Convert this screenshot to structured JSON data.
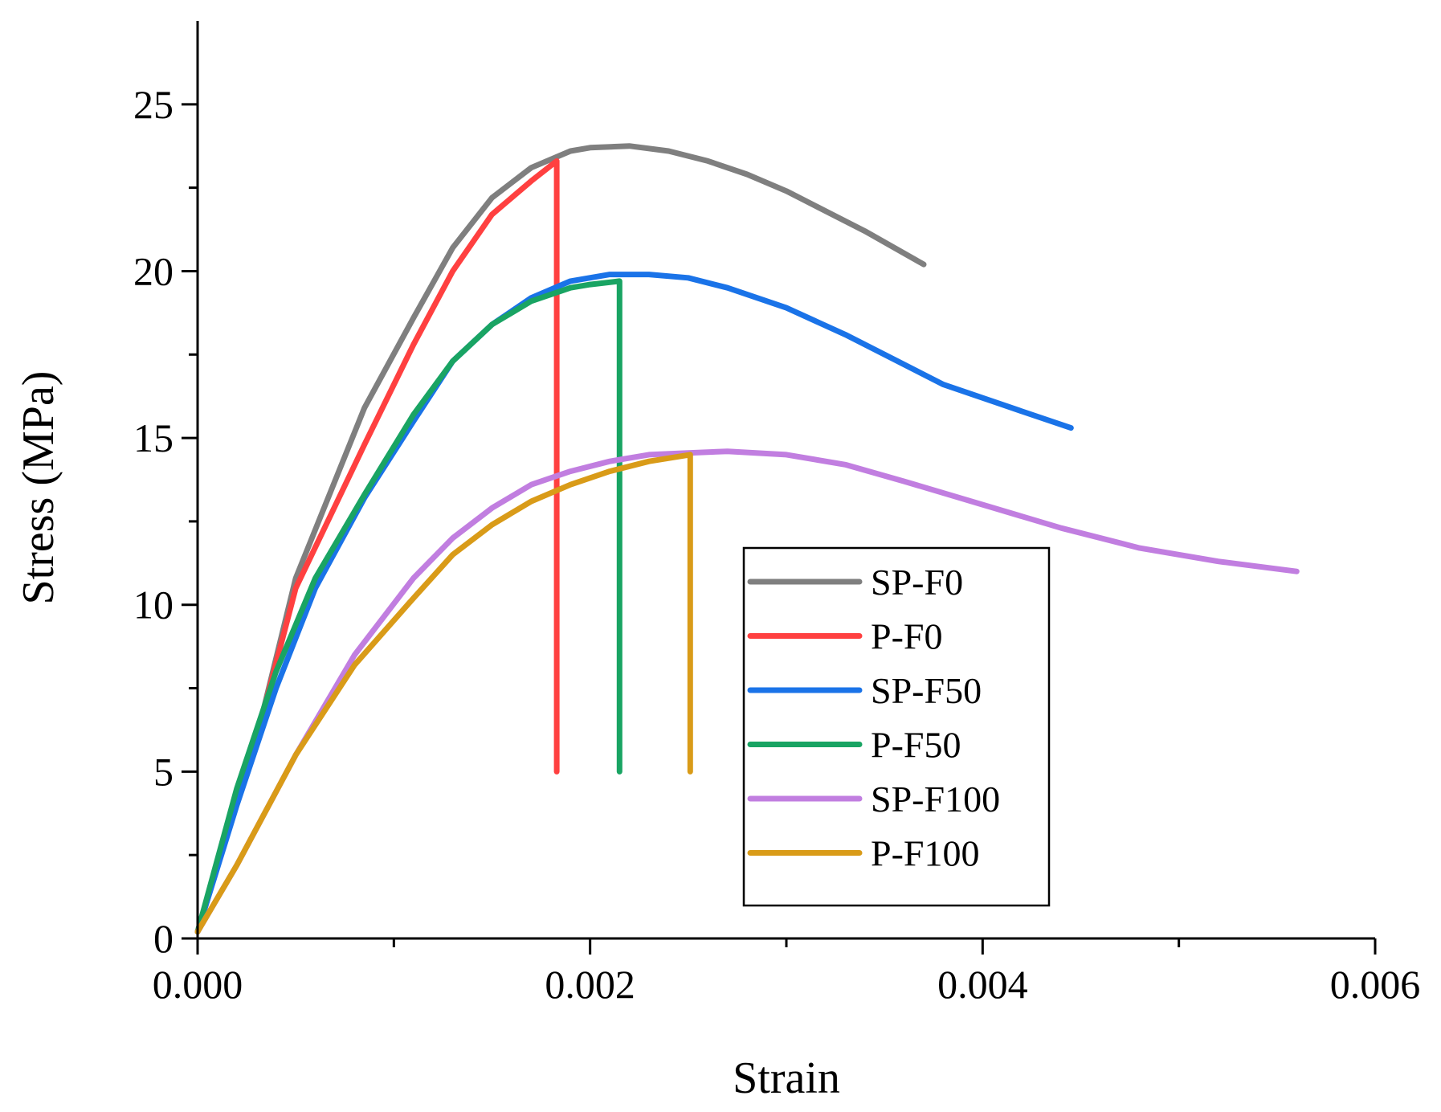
{
  "chart_data": {
    "type": "line",
    "xlabel": "Strain",
    "ylabel": "Stress (MPa)",
    "xlim": [
      0,
      0.006
    ],
    "ylim": [
      0,
      27.5
    ],
    "x_ticks": [
      {
        "value": 0,
        "label": "0.000"
      },
      {
        "value": 0.002,
        "label": "0.002"
      },
      {
        "value": 0.004,
        "label": "0.004"
      },
      {
        "value": 0.006,
        "label": "0.006"
      }
    ],
    "x_minor_ticks": [
      0.001,
      0.003,
      0.005
    ],
    "y_ticks": [
      {
        "value": 0,
        "label": "0"
      },
      {
        "value": 5,
        "label": "5"
      },
      {
        "value": 10,
        "label": "10"
      },
      {
        "value": 15,
        "label": "15"
      },
      {
        "value": 20,
        "label": "20"
      },
      {
        "value": 25,
        "label": "25"
      }
    ],
    "y_minor_ticks": [
      2.5,
      7.5,
      12.5,
      17.5,
      22.5
    ],
    "grid": false,
    "legend_position": "bottom-right",
    "series": [
      {
        "name": "SP-F0",
        "color": "#7f7f7f",
        "points": [
          [
            0,
            0.2
          ],
          [
            0.0003,
            6
          ],
          [
            0.0005,
            10.8
          ],
          [
            0.00085,
            15.9
          ],
          [
            0.0011,
            18.6
          ],
          [
            0.0013,
            20.7
          ],
          [
            0.0015,
            22.2
          ],
          [
            0.0017,
            23.1
          ],
          [
            0.0019,
            23.6
          ],
          [
            0.002,
            23.7
          ],
          [
            0.0022,
            23.75
          ],
          [
            0.0024,
            23.6
          ],
          [
            0.0026,
            23.3
          ],
          [
            0.0028,
            22.9
          ],
          [
            0.003,
            22.4
          ],
          [
            0.0032,
            21.8
          ],
          [
            0.0034,
            21.2
          ],
          [
            0.0037,
            20.2
          ]
        ]
      },
      {
        "name": "P-F0",
        "color": "#ff4040",
        "points": [
          [
            0,
            0.2
          ],
          [
            0.0003,
            6
          ],
          [
            0.0005,
            10.5
          ],
          [
            0.00085,
            14.8
          ],
          [
            0.0011,
            17.8
          ],
          [
            0.0013,
            20
          ],
          [
            0.0015,
            21.7
          ],
          [
            0.0017,
            22.7
          ],
          [
            0.00183,
            23.3
          ],
          [
            0.00183,
            5
          ]
        ]
      },
      {
        "name": "SP-F50",
        "color": "#1a73e8",
        "points": [
          [
            0,
            0.2
          ],
          [
            0.0002,
            4
          ],
          [
            0.0004,
            7.5
          ],
          [
            0.0006,
            10.5
          ],
          [
            0.00085,
            13.2
          ],
          [
            0.0011,
            15.5
          ],
          [
            0.0013,
            17.3
          ],
          [
            0.0015,
            18.4
          ],
          [
            0.0017,
            19.2
          ],
          [
            0.0019,
            19.7
          ],
          [
            0.0021,
            19.9
          ],
          [
            0.0023,
            19.9
          ],
          [
            0.0025,
            19.8
          ],
          [
            0.0027,
            19.5
          ],
          [
            0.003,
            18.9
          ],
          [
            0.0033,
            18.1
          ],
          [
            0.0035,
            17.5
          ],
          [
            0.0038,
            16.6
          ],
          [
            0.0042,
            15.8
          ],
          [
            0.00445,
            15.3
          ]
        ]
      },
      {
        "name": "P-F50",
        "color": "#19a463",
        "points": [
          [
            0,
            0.2
          ],
          [
            0.0002,
            4.5
          ],
          [
            0.0004,
            8
          ],
          [
            0.0006,
            10.8
          ],
          [
            0.00085,
            13.3
          ],
          [
            0.0011,
            15.7
          ],
          [
            0.0013,
            17.3
          ],
          [
            0.0015,
            18.4
          ],
          [
            0.0017,
            19.1
          ],
          [
            0.0019,
            19.5
          ],
          [
            0.002,
            19.6
          ],
          [
            0.00215,
            19.7
          ],
          [
            0.00215,
            5
          ]
        ]
      },
      {
        "name": "SP-F100",
        "color": "#c17ee0",
        "points": [
          [
            0,
            0.2
          ],
          [
            0.0002,
            2.2
          ],
          [
            0.0005,
            5.5
          ],
          [
            0.0008,
            8.5
          ],
          [
            0.0011,
            10.8
          ],
          [
            0.0013,
            12
          ],
          [
            0.0015,
            12.9
          ],
          [
            0.0017,
            13.6
          ],
          [
            0.0019,
            14
          ],
          [
            0.0021,
            14.3
          ],
          [
            0.0023,
            14.5
          ],
          [
            0.0025,
            14.55
          ],
          [
            0.0027,
            14.6
          ],
          [
            0.003,
            14.5
          ],
          [
            0.0033,
            14.2
          ],
          [
            0.0036,
            13.7
          ],
          [
            0.004,
            13
          ],
          [
            0.0044,
            12.3
          ],
          [
            0.0048,
            11.7
          ],
          [
            0.0052,
            11.3
          ],
          [
            0.0056,
            11
          ]
        ]
      },
      {
        "name": "P-F100",
        "color": "#d99b18",
        "points": [
          [
            0,
            0.2
          ],
          [
            0.0002,
            2.2
          ],
          [
            0.0005,
            5.5
          ],
          [
            0.0008,
            8.2
          ],
          [
            0.0011,
            10.2
          ],
          [
            0.0013,
            11.5
          ],
          [
            0.0015,
            12.4
          ],
          [
            0.0017,
            13.1
          ],
          [
            0.0019,
            13.6
          ],
          [
            0.0021,
            14
          ],
          [
            0.0023,
            14.3
          ],
          [
            0.00251,
            14.5
          ],
          [
            0.00251,
            5
          ]
        ]
      }
    ]
  }
}
